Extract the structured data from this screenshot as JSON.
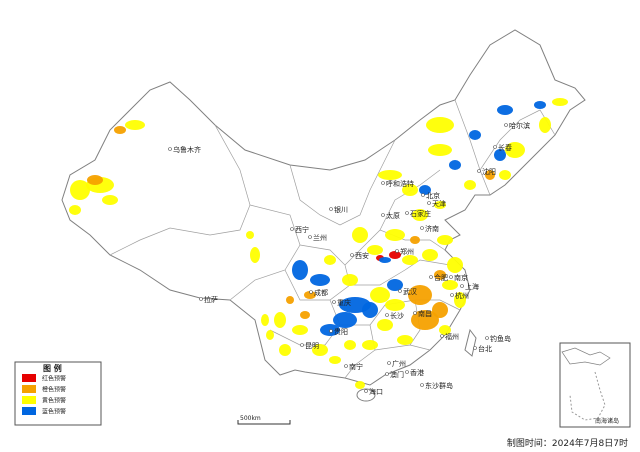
{
  "map": {
    "cities": [
      "乌鲁木齐",
      "哈尔滨",
      "长春",
      "沈阳",
      "呼和浩特",
      "北京",
      "天津",
      "银川",
      "太原",
      "石家庄",
      "西宁",
      "兰州",
      "济南",
      "郑州",
      "西安",
      "合肥",
      "南京",
      "上海",
      "成都",
      "武汉",
      "杭州",
      "重庆",
      "长沙",
      "南昌",
      "福州",
      "贵阳",
      "拉萨",
      "昆明",
      "台北",
      "钓鱼岛",
      "南宁",
      "广州",
      "香港",
      "澳门",
      "海口",
      "东沙群岛"
    ],
    "legend": {
      "title": "图 例",
      "items": [
        {
          "label": "红色预警",
          "color": "#e60000"
        },
        {
          "label": "橙色预警",
          "color": "#f5a100"
        },
        {
          "label": "黄色预警",
          "color": "#ffff00"
        },
        {
          "label": "蓝色预警",
          "color": "#0066e0"
        }
      ]
    },
    "scale_label": "500km",
    "inset_label": "南海诸岛",
    "footer": "制图时间：2024年7月8日7时"
  }
}
